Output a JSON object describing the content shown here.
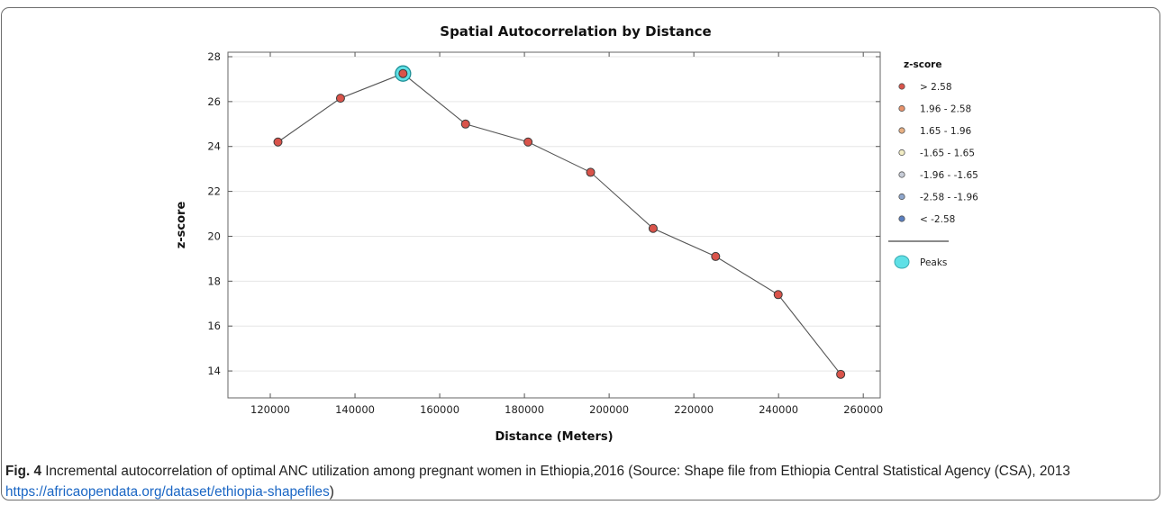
{
  "chart_data": {
    "type": "scatter",
    "title": "Spatial Autocorrelation by Distance",
    "xlabel": "Distance (Meters)",
    "ylabel": "z-score",
    "xlim": [
      110000,
      264000
    ],
    "ylim": [
      12.8,
      28.2
    ],
    "x_ticks": [
      120000,
      140000,
      160000,
      180000,
      200000,
      220000,
      240000,
      260000
    ],
    "y_ticks": [
      14,
      16,
      18,
      20,
      22,
      24,
      26,
      28
    ],
    "grid": "horizontal",
    "points": [
      {
        "x": 121811,
        "y": 24.2
      },
      {
        "x": 136573,
        "y": 26.15
      },
      {
        "x": 151335,
        "y": 27.25
      },
      {
        "x": 166097,
        "y": 25.0
      },
      {
        "x": 180859,
        "y": 24.2
      },
      {
        "x": 195621,
        "y": 22.85
      },
      {
        "x": 210383,
        "y": 20.35
      },
      {
        "x": 225145,
        "y": 19.1
      },
      {
        "x": 239907,
        "y": 17.4
      },
      {
        "x": 254669,
        "y": 13.85
      }
    ],
    "peak_index": 2,
    "point_color": "#d9534a",
    "line_color": "#555555",
    "peak_color": "#5fe0e6",
    "legend": {
      "title": "z-score",
      "placement": "right",
      "items": [
        {
          "label": "> 2.58",
          "color": "#d9534a"
        },
        {
          "label": "1.96 - 2.58",
          "color": "#e8926a"
        },
        {
          "label": "1.65 - 1.96",
          "color": "#e8b083"
        },
        {
          "label": "-1.65 - 1.65",
          "color": "#f2edc4"
        },
        {
          "label": "-1.96 - -1.65",
          "color": "#c8cdd8"
        },
        {
          "label": "-2.58 - -1.96",
          "color": "#8ea6cc"
        },
        {
          "label": "< -2.58",
          "color": "#5a7fc0"
        }
      ],
      "peaks_label": "Peaks"
    }
  },
  "caption": {
    "label": "Fig. 4",
    "text": " Incremental autocorrelation of optimal ANC utilization among pregnant women in Ethiopia,2016 (Source: Shape file from Ethiopia Central Statistical Agency (CSA), 2013 ",
    "link": "https://africaopendata.org/dataset/ethiopia-shapefiles",
    "end": ")"
  }
}
